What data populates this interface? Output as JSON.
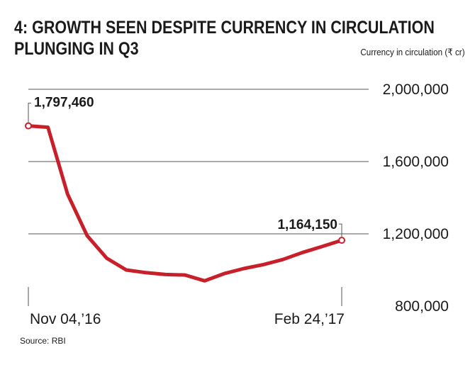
{
  "chart_data": {
    "type": "line",
    "title_lines": [
      "4: GROWTH SEEN DESPITE CURRENCY IN CIRCULATION",
      "PLUNGING IN Q3"
    ],
    "ylabel": "Currency in circulation (₹ cr)",
    "xlabel": "",
    "source": "Source: RBI",
    "x_tick_labels": [
      "Nov 04,’16",
      "Feb 24,’17"
    ],
    "y_ticks": [
      800000,
      1200000,
      1600000,
      2000000
    ],
    "y_tick_labels": [
      "800,000",
      "1,200,000",
      "1,600,000",
      "2,000,000"
    ],
    "ylim": [
      800000,
      2000000
    ],
    "grid": "horizontal",
    "series": [
      {
        "color": "#c8202a",
        "x": [
          "Nov 04, 2016",
          "Nov 11, 2016",
          "Nov 18, 2016",
          "Nov 25, 2016",
          "Dec 02, 2016",
          "Dec 09, 2016",
          "Dec 16, 2016",
          "Dec 23, 2016",
          "Dec 30, 2016",
          "Jan 06, 2017",
          "Jan 13, 2017",
          "Jan 20, 2017",
          "Jan 27, 2017",
          "Feb 03, 2017",
          "Feb 10, 2017",
          "Feb 17, 2017",
          "Feb 24, 2017"
        ],
        "values": [
          1797460,
          1790000,
          1420000,
          1190000,
          1065000,
          1000000,
          985000,
          975000,
          972000,
          940000,
          980000,
          1008000,
          1030000,
          1058000,
          1097000,
          1130000,
          1164150
        ],
        "point_labels": [
          {
            "index": 0,
            "text": "1,797,460"
          },
          {
            "index": 16,
            "text": "1,164,150"
          }
        ]
      }
    ]
  }
}
